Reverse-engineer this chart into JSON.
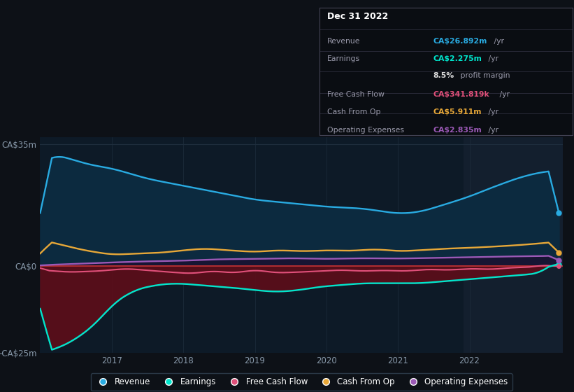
{
  "background_color": "#0d1117",
  "plot_bg_color": "#0d1a27",
  "highlight_bg_color": "#131f2e",
  "ylabel_top": "CA$35m",
  "ylabel_bottom": "-CA$25m",
  "ylabel_zero": "CA$0",
  "ylim": [
    -25,
    37
  ],
  "xlim_start": 2016.0,
  "xlim_end": 2023.3,
  "highlight_x_start": 2021.92,
  "highlight_x_end": 2023.3,
  "x_ticks": [
    2017,
    2018,
    2019,
    2020,
    2021,
    2022
  ],
  "revenue_color": "#29abe2",
  "earnings_color": "#00e5cc",
  "fcf_color": "#e0507a",
  "cashfromop_color": "#e8a838",
  "opex_color": "#9b59b6",
  "revenue_fill": "#0c2a3f",
  "earnings_fill_neg": "#5a0e1a",
  "opex_fill": "#1a0a30",
  "zero_line_color": "#cc3333",
  "grid_color": "#1e2d3d",
  "tick_color": "#8899aa",
  "info_box_bg": "#0a0d12",
  "info_box_border": "#444455",
  "legend_bg": "#0d1117",
  "legend_border": "#334455"
}
